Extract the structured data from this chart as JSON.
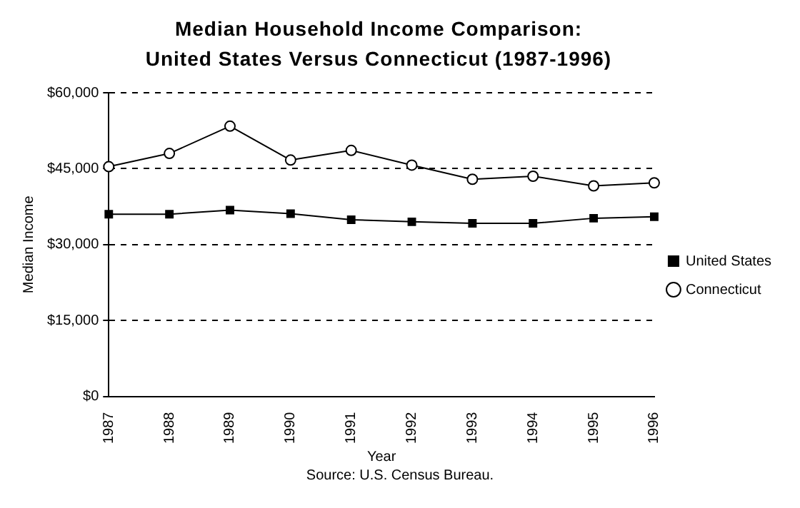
{
  "chart_data": {
    "type": "line",
    "title": "Median Household Income Comparison: United States Versus Connecticut (1987-1996)",
    "xlabel": "Year",
    "ylabel": "Median Income",
    "categories": [
      "1987",
      "1988",
      "1989",
      "1990",
      "1991",
      "1992",
      "1993",
      "1994",
      "1995",
      "1996"
    ],
    "series": [
      {
        "name": "United States",
        "color": "#000000",
        "marker": "square",
        "values": [
          36000,
          36000,
          36800,
          36100,
          34900,
          34500,
          34200,
          34200,
          35200,
          35500
        ]
      },
      {
        "name": "Connecticut",
        "color": "#000000",
        "marker": "circle",
        "values": [
          45400,
          48000,
          53400,
          46700,
          48600,
          45700,
          42900,
          43500,
          41600,
          42200
        ]
      }
    ],
    "ylim": [
      0,
      60000
    ],
    "yticks": [
      {
        "value": 0,
        "label": "$0"
      },
      {
        "value": 15000,
        "label": "$15,000"
      },
      {
        "value": 30000,
        "label": "$30,000"
      },
      {
        "value": 45000,
        "label": "$45,000"
      },
      {
        "value": 60000,
        "label": "$60,000"
      }
    ],
    "grid": "y",
    "line_style": "solid",
    "legend": "right",
    "annotations": [
      "Source: U.S. Census Bureau."
    ]
  }
}
